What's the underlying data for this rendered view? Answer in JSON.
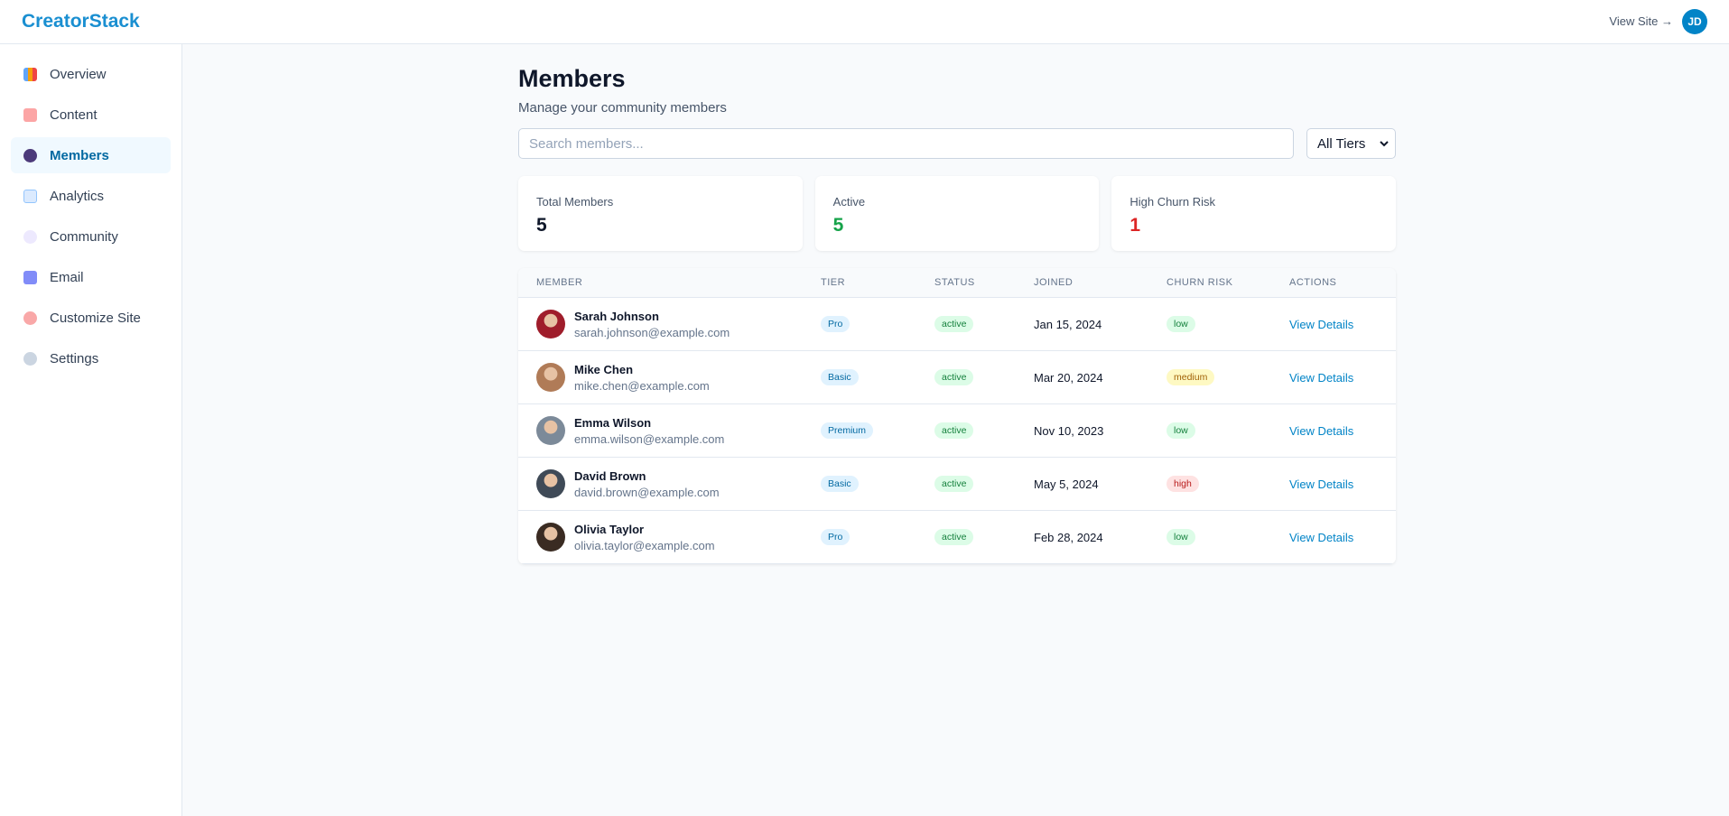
{
  "header": {
    "brand": "CreatorStack",
    "view_site": "View Site →",
    "avatar_initials": "JD"
  },
  "nav": [
    {
      "label": "Overview",
      "active": false
    },
    {
      "label": "Content",
      "active": false
    },
    {
      "label": "Members",
      "active": true
    },
    {
      "label": "Analytics",
      "active": false
    },
    {
      "label": "Community",
      "active": false
    },
    {
      "label": "Email",
      "active": false
    },
    {
      "label": "Customize Site",
      "active": false
    },
    {
      "label": "Settings",
      "active": false
    }
  ],
  "page": {
    "title": "Members",
    "subtitle": "Manage your community members",
    "search_placeholder": "Search members...",
    "tier_filter": "All Tiers"
  },
  "stats": [
    {
      "label": "Total Members",
      "value": 5,
      "color": "#0f172a"
    },
    {
      "label": "Active",
      "value": 5,
      "color": "#16a34a"
    },
    {
      "label": "High Churn Risk",
      "value": 1,
      "color": "#dc2626"
    }
  ],
  "table": {
    "columns": [
      "MEMBER",
      "TIER",
      "STATUS",
      "JOINED",
      "CHURN RISK",
      "ACTIONS"
    ],
    "rows": [
      {
        "name": "Sarah Johnson",
        "email": "sarah.johnson@example.com",
        "tier": "Pro",
        "status": "active",
        "joined": "Jan 15, 2024",
        "churn_risk": "low",
        "churn_bg": "#dcfce7",
        "churn_fg": "#15803d",
        "action": "View Details",
        "avatar_color": "#9f1d2b"
      },
      {
        "name": "Mike Chen",
        "email": "mike.chen@example.com",
        "tier": "Basic",
        "status": "active",
        "joined": "Mar 20, 2024",
        "churn_risk": "medium",
        "churn_bg": "#fef9c3",
        "churn_fg": "#a16207",
        "action": "View Details",
        "avatar_color": "#b07b57"
      },
      {
        "name": "Emma Wilson",
        "email": "emma.wilson@example.com",
        "tier": "Premium",
        "status": "active",
        "joined": "Nov 10, 2023",
        "churn_risk": "low",
        "churn_bg": "#dcfce7",
        "churn_fg": "#15803d",
        "action": "View Details",
        "avatar_color": "#7c8a99"
      },
      {
        "name": "David Brown",
        "email": "david.brown@example.com",
        "tier": "Basic",
        "status": "active",
        "joined": "May 5, 2024",
        "churn_risk": "high",
        "churn_bg": "#fee2e2",
        "churn_fg": "#b91c1c",
        "action": "View Details",
        "avatar_color": "#3f4a57"
      },
      {
        "name": "Olivia Taylor",
        "email": "olivia.taylor@example.com",
        "tier": "Pro",
        "status": "active",
        "joined": "Feb 28, 2024",
        "churn_risk": "low",
        "churn_bg": "#dcfce7",
        "churn_fg": "#15803d",
        "action": "View Details",
        "avatar_color": "#3a2b22"
      }
    ]
  }
}
